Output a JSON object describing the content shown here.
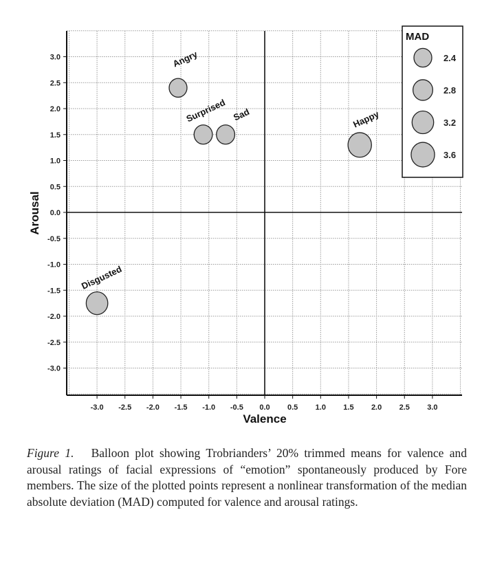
{
  "chart_data": {
    "type": "scatter",
    "subtype": "balloon",
    "xlabel": "Valence",
    "ylabel": "Arousal",
    "xlim": [
      -3.5,
      3.5
    ],
    "ylim": [
      -3.5,
      3.5
    ],
    "xticks": [
      "-3.0",
      "-2.5",
      "-2.0",
      "-1.5",
      "-1.0",
      "-0.5",
      "0.0",
      "0.5",
      "1.0",
      "1.5",
      "2.0",
      "2.5",
      "3.0"
    ],
    "yticks": [
      "3.0",
      "2.5",
      "2.0",
      "1.5",
      "1.0",
      "0.5",
      "0.0",
      "-0.5",
      "-1.0",
      "-1.5",
      "-2.0",
      "-2.5",
      "-3.0"
    ],
    "grid": true,
    "points": [
      {
        "label": "Angry",
        "x": -1.55,
        "y": 2.4,
        "mad": 2.4
      },
      {
        "label": "Surprised",
        "x": -1.1,
        "y": 1.5,
        "mad": 2.5
      },
      {
        "label": "Sad",
        "x": -0.7,
        "y": 1.5,
        "mad": 2.5
      },
      {
        "label": "Happy",
        "x": 1.7,
        "y": 1.3,
        "mad": 3.6
      },
      {
        "label": "Disgusted",
        "x": -3.0,
        "y": -1.75,
        "mad": 3.2
      }
    ],
    "legend": {
      "title": "MAD",
      "placement": "top-right",
      "entries": [
        "2.4",
        "2.8",
        "3.2",
        "3.6"
      ]
    },
    "colors": {
      "fill": "#c4c4c4",
      "stroke": "#222222",
      "grid": "#9a9a9a"
    }
  },
  "caption": {
    "figure_label": "Figure 1.",
    "text": "Balloon plot showing Trobrianders’ 20% trimmed means for valence and arousal ratings of facial expressions of “emotion” spontaneously produced by Fore members. The size of the plotted points represent a nonlinear transformation of the median absolute deviation (MAD) computed for valence and arousal ratings."
  }
}
